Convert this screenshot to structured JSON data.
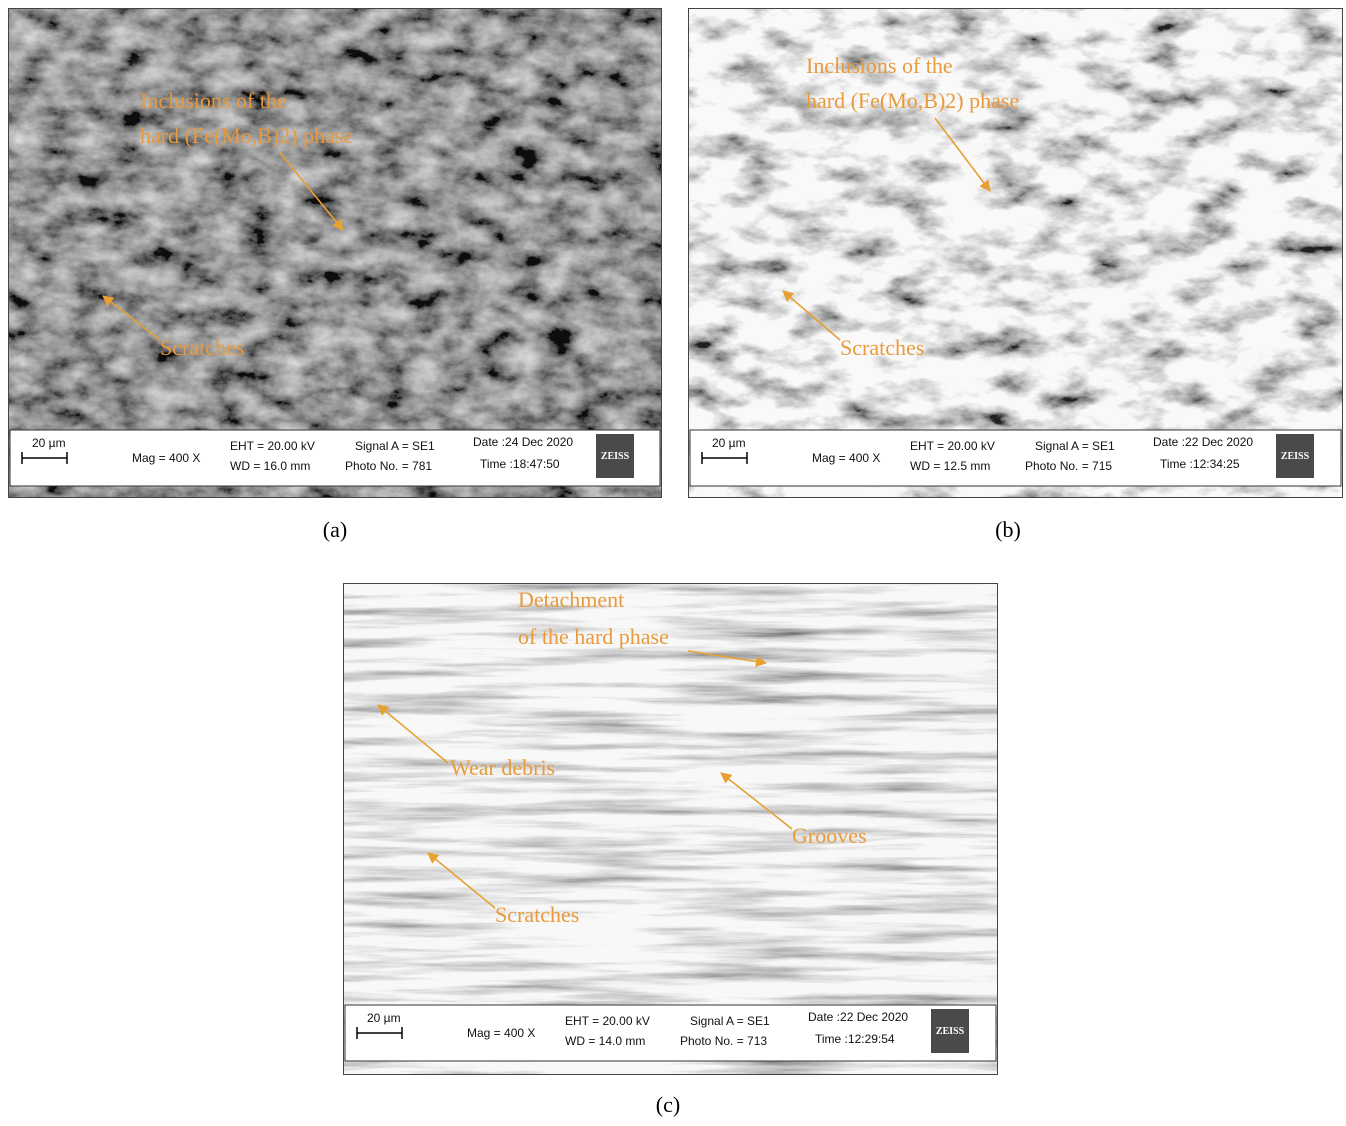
{
  "panels": [
    {
      "caption": "(a)",
      "annotations": [
        {
          "lines": [
            "Inclusions of the",
            "hard (Fe(Mo,B)2) phase"
          ]
        },
        {
          "lines": [
            "Scratches"
          ]
        }
      ],
      "info": {
        "scale": "20 µm",
        "mag": "Mag =   400 X",
        "eht": "EHT = 20.00 kV",
        "wd": "WD = 16.0 mm",
        "signal": "Signal A = SE1",
        "photo": "Photo No. = 781",
        "date": "Date :24 Dec 2020",
        "time": "Time :18:47:50",
        "logo": "ZEISS"
      }
    },
    {
      "caption": "(b)",
      "annotations": [
        {
          "lines": [
            "Inclusions of the",
            "hard (Fe(Mo,B)2) phase"
          ]
        },
        {
          "lines": [
            "Scratches"
          ]
        }
      ],
      "info": {
        "scale": "20 µm",
        "mag": "Mag =   400 X",
        "eht": "EHT = 20.00 kV",
        "wd": "WD = 12.5 mm",
        "signal": "Signal A = SE1",
        "photo": "Photo No. = 715",
        "date": "Date :22 Dec 2020",
        "time": "Time :12:34:25",
        "logo": "ZEISS"
      }
    },
    {
      "caption": "(c)",
      "annotations": [
        {
          "lines": [
            "Detachment",
            "of the hard phase"
          ]
        },
        {
          "lines": [
            "Wear debris"
          ]
        },
        {
          "lines": [
            "Grooves"
          ]
        },
        {
          "lines": [
            "Scratches"
          ]
        }
      ],
      "info": {
        "scale": "20 µm",
        "mag": "Mag =   400 X",
        "eht": "EHT = 20.00 kV",
        "wd": "WD = 14.0 mm",
        "signal": "Signal A = SE1",
        "photo": "Photo No. = 713",
        "date": "Date :22 Dec 2020",
        "time": "Time :12:29:54",
        "logo": "ZEISS"
      }
    }
  ]
}
